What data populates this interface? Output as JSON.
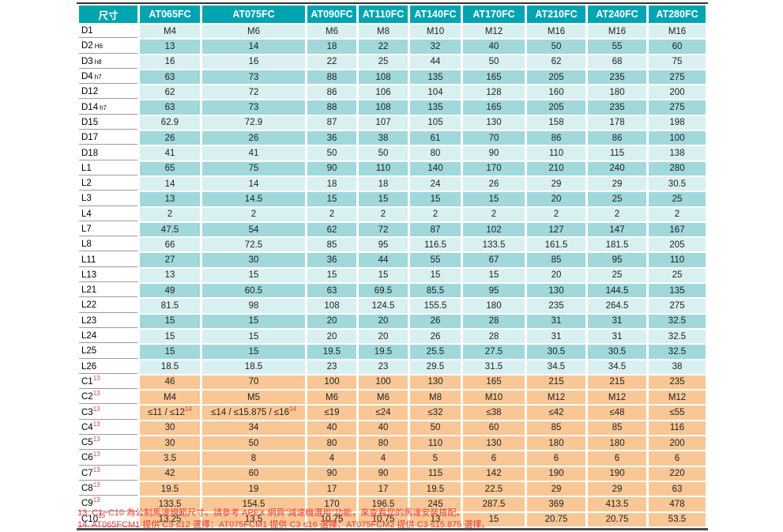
{
  "colors": {
    "header_bg": "#00A4B0",
    "row_light": "#D9F0F1",
    "row_dark": "#A0D8DB",
    "row_motor": "#F8C795",
    "footnote_red": "#E8403A"
  },
  "table": {
    "size_header": "尺寸",
    "columns": [
      "AT065FC",
      "AT075FC",
      "AT090FC",
      "AT110FC",
      "AT140FC",
      "AT170FC",
      "AT210FC",
      "AT240FC",
      "AT280FC"
    ],
    "rows": [
      {
        "label": "D1",
        "label_sub": "",
        "label_sup": "",
        "band": "light",
        "values": [
          "M4",
          "M6",
          "M6",
          "M8",
          "M10",
          "M12",
          "M16",
          "M16",
          "M16"
        ]
      },
      {
        "label": "D2",
        "label_sub": "H6",
        "label_sup": "",
        "band": "dark",
        "values": [
          "13",
          "14",
          "18",
          "22",
          "32",
          "40",
          "50",
          "55",
          "60"
        ]
      },
      {
        "label": "D3",
        "label_sub": "h8",
        "label_sup": "",
        "band": "light",
        "values": [
          "16",
          "16",
          "22",
          "25",
          "44",
          "50",
          "62",
          "68",
          "75"
        ]
      },
      {
        "label": "D4",
        "label_sub": "h7",
        "label_sup": "",
        "band": "dark",
        "values": [
          "63",
          "73",
          "88",
          "108",
          "135",
          "165",
          "205",
          "235",
          "275"
        ]
      },
      {
        "label": "D12",
        "label_sub": "",
        "label_sup": "",
        "band": "light",
        "values": [
          "62",
          "72",
          "86",
          "106",
          "104",
          "128",
          "160",
          "180",
          "200"
        ]
      },
      {
        "label": "D14",
        "label_sub": "h7",
        "label_sup": "",
        "band": "dark",
        "values": [
          "63",
          "73",
          "88",
          "108",
          "135",
          "165",
          "205",
          "235",
          "275"
        ]
      },
      {
        "label": "D15",
        "label_sub": "",
        "label_sup": "",
        "band": "light",
        "values": [
          "62.9",
          "72.9",
          "87",
          "107",
          "105",
          "130",
          "158",
          "178",
          "198"
        ]
      },
      {
        "label": "D17",
        "label_sub": "",
        "label_sup": "",
        "band": "dark",
        "values": [
          "26",
          "26",
          "36",
          "38",
          "61",
          "70",
          "86",
          "86",
          "100"
        ]
      },
      {
        "label": "D18",
        "label_sub": "",
        "label_sup": "",
        "band": "light",
        "values": [
          "41",
          "41",
          "50",
          "50",
          "80",
          "90",
          "110",
          "115",
          "138"
        ]
      },
      {
        "label": "L1",
        "label_sub": "",
        "label_sup": "",
        "band": "dark",
        "values": [
          "65",
          "75",
          "90",
          "110",
          "140",
          "170",
          "210",
          "240",
          "280"
        ]
      },
      {
        "label": "L2",
        "label_sub": "",
        "label_sup": "",
        "band": "light",
        "values": [
          "14",
          "14",
          "18",
          "18",
          "24",
          "26",
          "29",
          "29",
          "30.5"
        ]
      },
      {
        "label": "L3",
        "label_sub": "",
        "label_sup": "",
        "band": "dark",
        "values": [
          "13",
          "14.5",
          "15",
          "15",
          "15",
          "15",
          "20",
          "25",
          "25"
        ]
      },
      {
        "label": "L4",
        "label_sub": "",
        "label_sup": "",
        "band": "light",
        "values": [
          "2",
          "2",
          "2",
          "2",
          "2",
          "2",
          "2",
          "2",
          "2"
        ]
      },
      {
        "label": "L7",
        "label_sub": "",
        "label_sup": "",
        "band": "dark",
        "values": [
          "47.5",
          "54",
          "62",
          "72",
          "87",
          "102",
          "127",
          "147",
          "167"
        ]
      },
      {
        "label": "L8",
        "label_sub": "",
        "label_sup": "",
        "band": "light",
        "values": [
          "66",
          "72.5",
          "85",
          "95",
          "116.5",
          "133.5",
          "161.5",
          "181.5",
          "205"
        ]
      },
      {
        "label": "L11",
        "label_sub": "",
        "label_sup": "",
        "band": "dark",
        "values": [
          "27",
          "30",
          "36",
          "44",
          "55",
          "67",
          "85",
          "95",
          "110"
        ]
      },
      {
        "label": "L13",
        "label_sub": "",
        "label_sup": "",
        "band": "light",
        "values": [
          "13",
          "15",
          "15",
          "15",
          "15",
          "15",
          "20",
          "25",
          "25"
        ]
      },
      {
        "label": "L21",
        "label_sub": "",
        "label_sup": "",
        "band": "dark",
        "values": [
          "49",
          "60.5",
          "63",
          "69.5",
          "85.5",
          "95",
          "130",
          "144.5",
          "135"
        ]
      },
      {
        "label": "L22",
        "label_sub": "",
        "label_sup": "",
        "band": "light",
        "values": [
          "81.5",
          "98",
          "108",
          "124.5",
          "155.5",
          "180",
          "235",
          "264.5",
          "275"
        ]
      },
      {
        "label": "L23",
        "label_sub": "",
        "label_sup": "",
        "band": "dark",
        "values": [
          "15",
          "15",
          "20",
          "20",
          "26",
          "28",
          "31",
          "31",
          "32.5"
        ]
      },
      {
        "label": "L24",
        "label_sub": "",
        "label_sup": "",
        "band": "light",
        "values": [
          "15",
          "15",
          "20",
          "20",
          "26",
          "28",
          "31",
          "31",
          "32.5"
        ]
      },
      {
        "label": "L25",
        "label_sub": "",
        "label_sup": "",
        "band": "dark",
        "values": [
          "15",
          "15",
          "19.5",
          "19.5",
          "25.5",
          "27.5",
          "30.5",
          "30.5",
          "32.5"
        ]
      },
      {
        "label": "L26",
        "label_sub": "",
        "label_sup": "",
        "band": "light",
        "values": [
          "18.5",
          "18.5",
          "23",
          "23",
          "29.5",
          "31.5",
          "34.5",
          "34.5",
          "38"
        ]
      },
      {
        "label": "C1",
        "label_sub": "",
        "label_sup": "13",
        "band": "motor",
        "values": [
          "46",
          "70",
          "100",
          "100",
          "130",
          "165",
          "215",
          "215",
          "235"
        ]
      },
      {
        "label": "C2",
        "label_sub": "",
        "label_sup": "13",
        "band": "motor",
        "values": [
          "M4",
          "M5",
          "M6",
          "M6",
          "M8",
          "M10",
          "M12",
          "M12",
          "M12"
        ]
      },
      {
        "label": "C3",
        "label_sub": "",
        "label_sup": "13",
        "band": "motor",
        "values": [
          "≤11 / ≤12^14",
          "≤14 / ≤15.875 / ≤16^14",
          "≤19",
          "≤24",
          "≤32",
          "≤38",
          "≤42",
          "≤48",
          "≤55"
        ]
      },
      {
        "label": "C4",
        "label_sub": "",
        "label_sup": "13",
        "band": "motor",
        "values": [
          "30",
          "34",
          "40",
          "40",
          "50",
          "60",
          "85",
          "85",
          "116"
        ]
      },
      {
        "label": "C5",
        "label_sub": "",
        "label_sup": "13",
        "band": "motor",
        "values": [
          "30",
          "50",
          "80",
          "80",
          "110",
          "130",
          "180",
          "180",
          "200"
        ]
      },
      {
        "label": "C6",
        "label_sub": "",
        "label_sup": "13",
        "band": "motor",
        "values": [
          "3.5",
          "8",
          "4",
          "4",
          "5",
          "6",
          "6",
          "6",
          "6"
        ]
      },
      {
        "label": "C7",
        "label_sub": "",
        "label_sup": "13",
        "band": "motor",
        "values": [
          "42",
          "60",
          "90",
          "90",
          "115",
          "142",
          "190",
          "190",
          "220"
        ]
      },
      {
        "label": "C8",
        "label_sub": "",
        "label_sup": "13",
        "band": "motor",
        "values": [
          "19.5",
          "19",
          "17",
          "17",
          "19.5",
          "22.5",
          "29",
          "29",
          "63"
        ]
      },
      {
        "label": "C9",
        "label_sub": "",
        "label_sup": "13",
        "band": "motor",
        "values": [
          "133.5",
          "154.5",
          "170",
          "196.5",
          "245",
          "287.5",
          "369",
          "413.5",
          "478"
        ]
      },
      {
        "label": "C10",
        "label_sub": "",
        "label_sup": "13",
        "band": "motor",
        "values": [
          "13.25",
          "13.5",
          "10.75",
          "10.75",
          "13",
          "15",
          "20.75",
          "20.75",
          "53.5"
        ]
      }
    ]
  },
  "footnotes": [
    "13. C1~C10 為公制馬達規範尺寸。請參考 APEX 網頁\"減速機選用\"功能，來查看您的馬達安裝搭配。",
    "14. AT065FCM1 提供 C3 ≤12 選擇：AT075FCM1 提供 C3 ≤16 選擇：AT075FCM2 提供 C3 ≤15.875 選擇。"
  ]
}
